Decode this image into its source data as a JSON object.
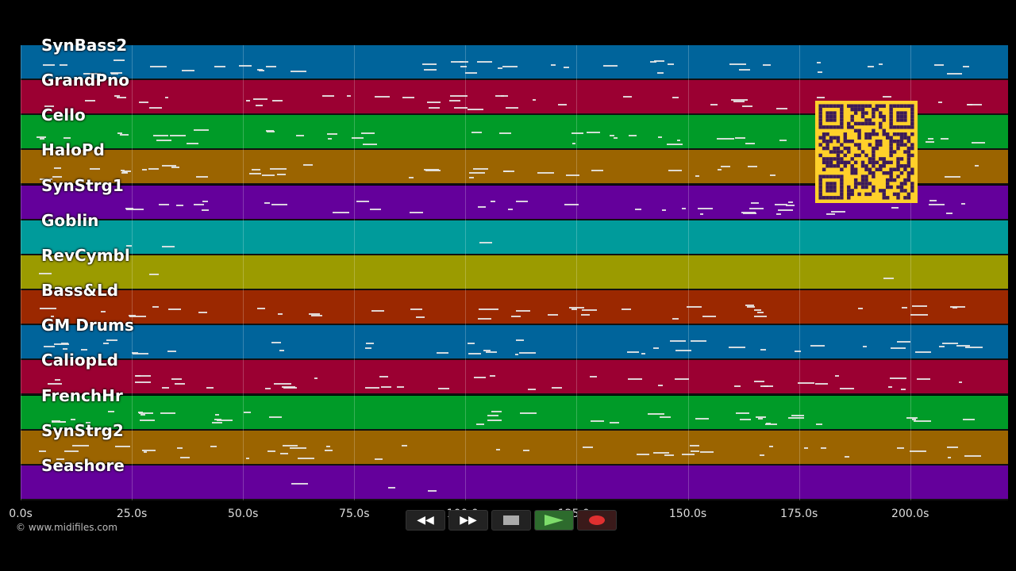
{
  "tracks": [
    {
      "label": "SynBass2",
      "color": "#00649b"
    },
    {
      "label": "GrandPno",
      "color": "#9b0032"
    },
    {
      "label": "Cello",
      "color": "#009b28"
    },
    {
      "label": "HaloPd",
      "color": "#9b6400"
    },
    {
      "label": "SynStrg1",
      "color": "#64009b"
    },
    {
      "label": "Goblin",
      "color": "#009b9b"
    },
    {
      "label": "RevCymbl",
      "color": "#9b9b00"
    },
    {
      "label": "Bass&Ld",
      "color": "#9b2800"
    },
    {
      "label": "GM Drums",
      "color": "#00649b"
    },
    {
      "label": "CaliopLd",
      "color": "#9b0032"
    },
    {
      "label": "FrenchHr",
      "color": "#009b28"
    },
    {
      "label": "SynStrg2",
      "color": "#9b6400"
    },
    {
      "label": "Seashore",
      "color": "#64009b"
    }
  ],
  "time_axis": {
    "ticks": [
      "0.0s",
      "25.0s",
      "50.0s",
      "75.0s",
      "100.0s",
      "125.0s",
      "150.0s",
      "175.0s",
      "200.0s"
    ],
    "tick_values": [
      0,
      25,
      50,
      75,
      100,
      125,
      150,
      175,
      200
    ],
    "max_seconds": 222
  },
  "copyright": "© www.midifiles.com",
  "transport": {
    "rewind": "◀◀",
    "forward": "▶▶"
  },
  "qr_color": "#ffd02a"
}
